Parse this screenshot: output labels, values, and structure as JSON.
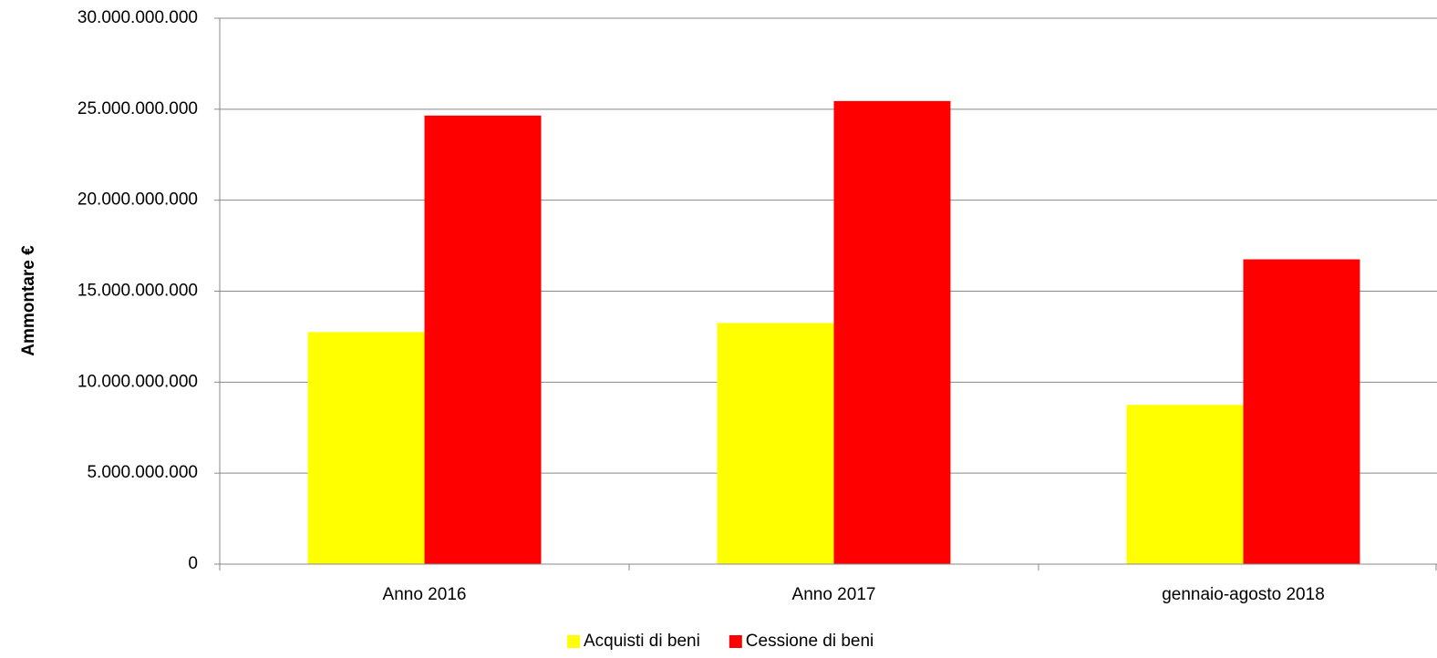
{
  "chart_data": {
    "type": "bar",
    "y_label": "Ammontare €",
    "categories": [
      "Anno 2016",
      "Anno 2017",
      "gennaio-agosto 2018"
    ],
    "series": [
      {
        "name": "Acquisti di beni",
        "color": "#ffff00",
        "values": [
          12750000000,
          13250000000,
          8750000000
        ]
      },
      {
        "name": "Cessione di beni",
        "color": "#ff0000",
        "values": [
          24650000000,
          25450000000,
          16750000000
        ]
      }
    ],
    "ylim": [
      0,
      30000000000
    ],
    "yticks": [
      0,
      {
        "value": 5000000000,
        "label": "5.000.000.000"
      },
      {
        "value": 10000000000,
        "label": "10.000.000.000"
      },
      {
        "value": 15000000000,
        "label": "15.000.000.000"
      },
      {
        "value": 20000000000,
        "label": "20.000.000.000"
      },
      {
        "value": 25000000000,
        "label": "25.000.000.000"
      },
      {
        "value": 30000000000,
        "label": "30.000.000.000"
      }
    ],
    "grid": true,
    "legend": "bottom"
  }
}
